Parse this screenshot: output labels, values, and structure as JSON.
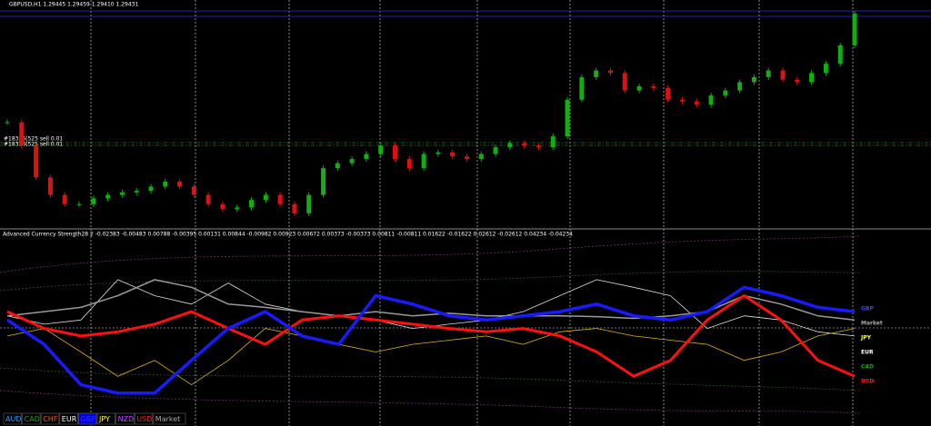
{
  "header": {
    "symbol_line": "GBPUSD,H1 1.29445 1.29459 1.29410 1.29431",
    "orders": [
      "#18326(525 sell 0.01",
      "#18326(525 sell 0.01"
    ]
  },
  "price_chart": {
    "type": "candlestick",
    "ylim": [
      1.27,
      1.295
    ],
    "closes": [
      1.282,
      1.2792,
      1.2754,
      1.2733,
      1.2722,
      1.2722,
      1.2729,
      1.2733,
      1.2736,
      1.2738,
      1.2743,
      1.2749,
      1.2743,
      1.2733,
      1.2722,
      1.2716,
      1.2718,
      1.2727,
      1.2733,
      1.2722,
      1.2711,
      1.2733,
      1.2765,
      1.2771,
      1.2776,
      1.2782,
      1.2792,
      1.2776,
      1.2765,
      1.2782,
      1.2784,
      1.2779,
      1.2776,
      1.2782,
      1.279,
      1.2795,
      1.2792,
      1.279,
      1.2803,
      1.2847,
      1.2874,
      1.2882,
      1.2879,
      1.2858,
      1.2863,
      1.2861,
      1.2847,
      1.2845,
      1.2841,
      1.2852,
      1.2858,
      1.2868,
      1.2874,
      1.2882,
      1.2871,
      1.2868,
      1.2879,
      1.289,
      1.2912,
      1.295
    ]
  },
  "indicator": {
    "type": "line",
    "title": "Advanced Currency Strength28 2 -0.02383 -0.00483 0.00788 -0.00395 0.00131 0.00844 -0.00982 0.00923 0.00672 0.00373 -0.00373 0.00811 -0.00811 0.01622 -0.01622 0.02612 -0.02612 0.04234 -0.04234",
    "ylim": [
      -100,
      100
    ],
    "series": [
      {
        "name": "EUR",
        "color": "#dddddd",
        "width": 0.8,
        "values": [
          16,
          6,
          11,
          59,
          40,
          30,
          55,
          30,
          21,
          16,
          11,
          1,
          6,
          11,
          21,
          40,
          59,
          50,
          40,
          1,
          16,
          11,
          -3,
          -8
        ]
      },
      {
        "name": "JPY",
        "color": "#e0b020",
        "width": 0.8,
        "values": [
          -8,
          1,
          -27,
          -56,
          -37,
          -66,
          -37,
          1,
          -8,
          -18,
          -27,
          -18,
          -13,
          -8,
          -18,
          -3,
          1,
          -8,
          -13,
          -18,
          -37,
          -27,
          -8,
          1
        ]
      },
      {
        "name": "Market",
        "color": "#9a9a9a",
        "width": 1.5,
        "values": [
          16,
          21,
          26,
          40,
          59,
          50,
          30,
          26,
          21,
          16,
          21,
          16,
          19,
          16,
          16,
          16,
          15,
          13,
          16,
          21,
          40,
          30,
          16,
          11
        ]
      },
      {
        "name": "USD",
        "color": "#ff1010",
        "width": 3,
        "values": [
          21,
          1,
          -8,
          -3,
          6,
          21,
          1,
          -18,
          11,
          16,
          11,
          6,
          1,
          -3,
          1,
          -8,
          -27,
          -56,
          -37,
          11,
          40,
          11,
          -37,
          -56
        ]
      },
      {
        "name": "GBP",
        "color": "#1a1aff",
        "width": 3.5,
        "values": [
          11,
          -18,
          -66,
          -76,
          -76,
          -37,
          1,
          21,
          -8,
          -18,
          40,
          30,
          16,
          11,
          16,
          21,
          30,
          16,
          11,
          21,
          50,
          40,
          26,
          21
        ]
      }
    ],
    "end_labels": [
      {
        "text": "GBP",
        "color": "#4040ff"
      },
      {
        "text": "Market",
        "color": "#aaaaaa"
      },
      {
        "text": "JPY",
        "color": "#ffff40"
      },
      {
        "text": "EUR",
        "color": "#ffffff"
      },
      {
        "text": "CAD",
        "color": "#20a020"
      },
      {
        "text": "USD",
        "color": "#ff2020"
      }
    ],
    "legend": [
      {
        "text": "AUD",
        "color": "#3399ff"
      },
      {
        "text": "CAD",
        "color": "#20a020"
      },
      {
        "text": "CHF",
        "color": "#ff5020"
      },
      {
        "text": "EUR",
        "color": "#ffffff"
      },
      {
        "text": "GBP",
        "color": "#3030ff",
        "background": "#0000dd"
      },
      {
        "text": "JPY",
        "color": "#ffff40"
      },
      {
        "text": "NZD",
        "color": "#c040ff"
      },
      {
        "text": "USD",
        "color": "#ff2020"
      },
      {
        "text": "Market",
        "color": "#aaaaaa"
      }
    ]
  }
}
